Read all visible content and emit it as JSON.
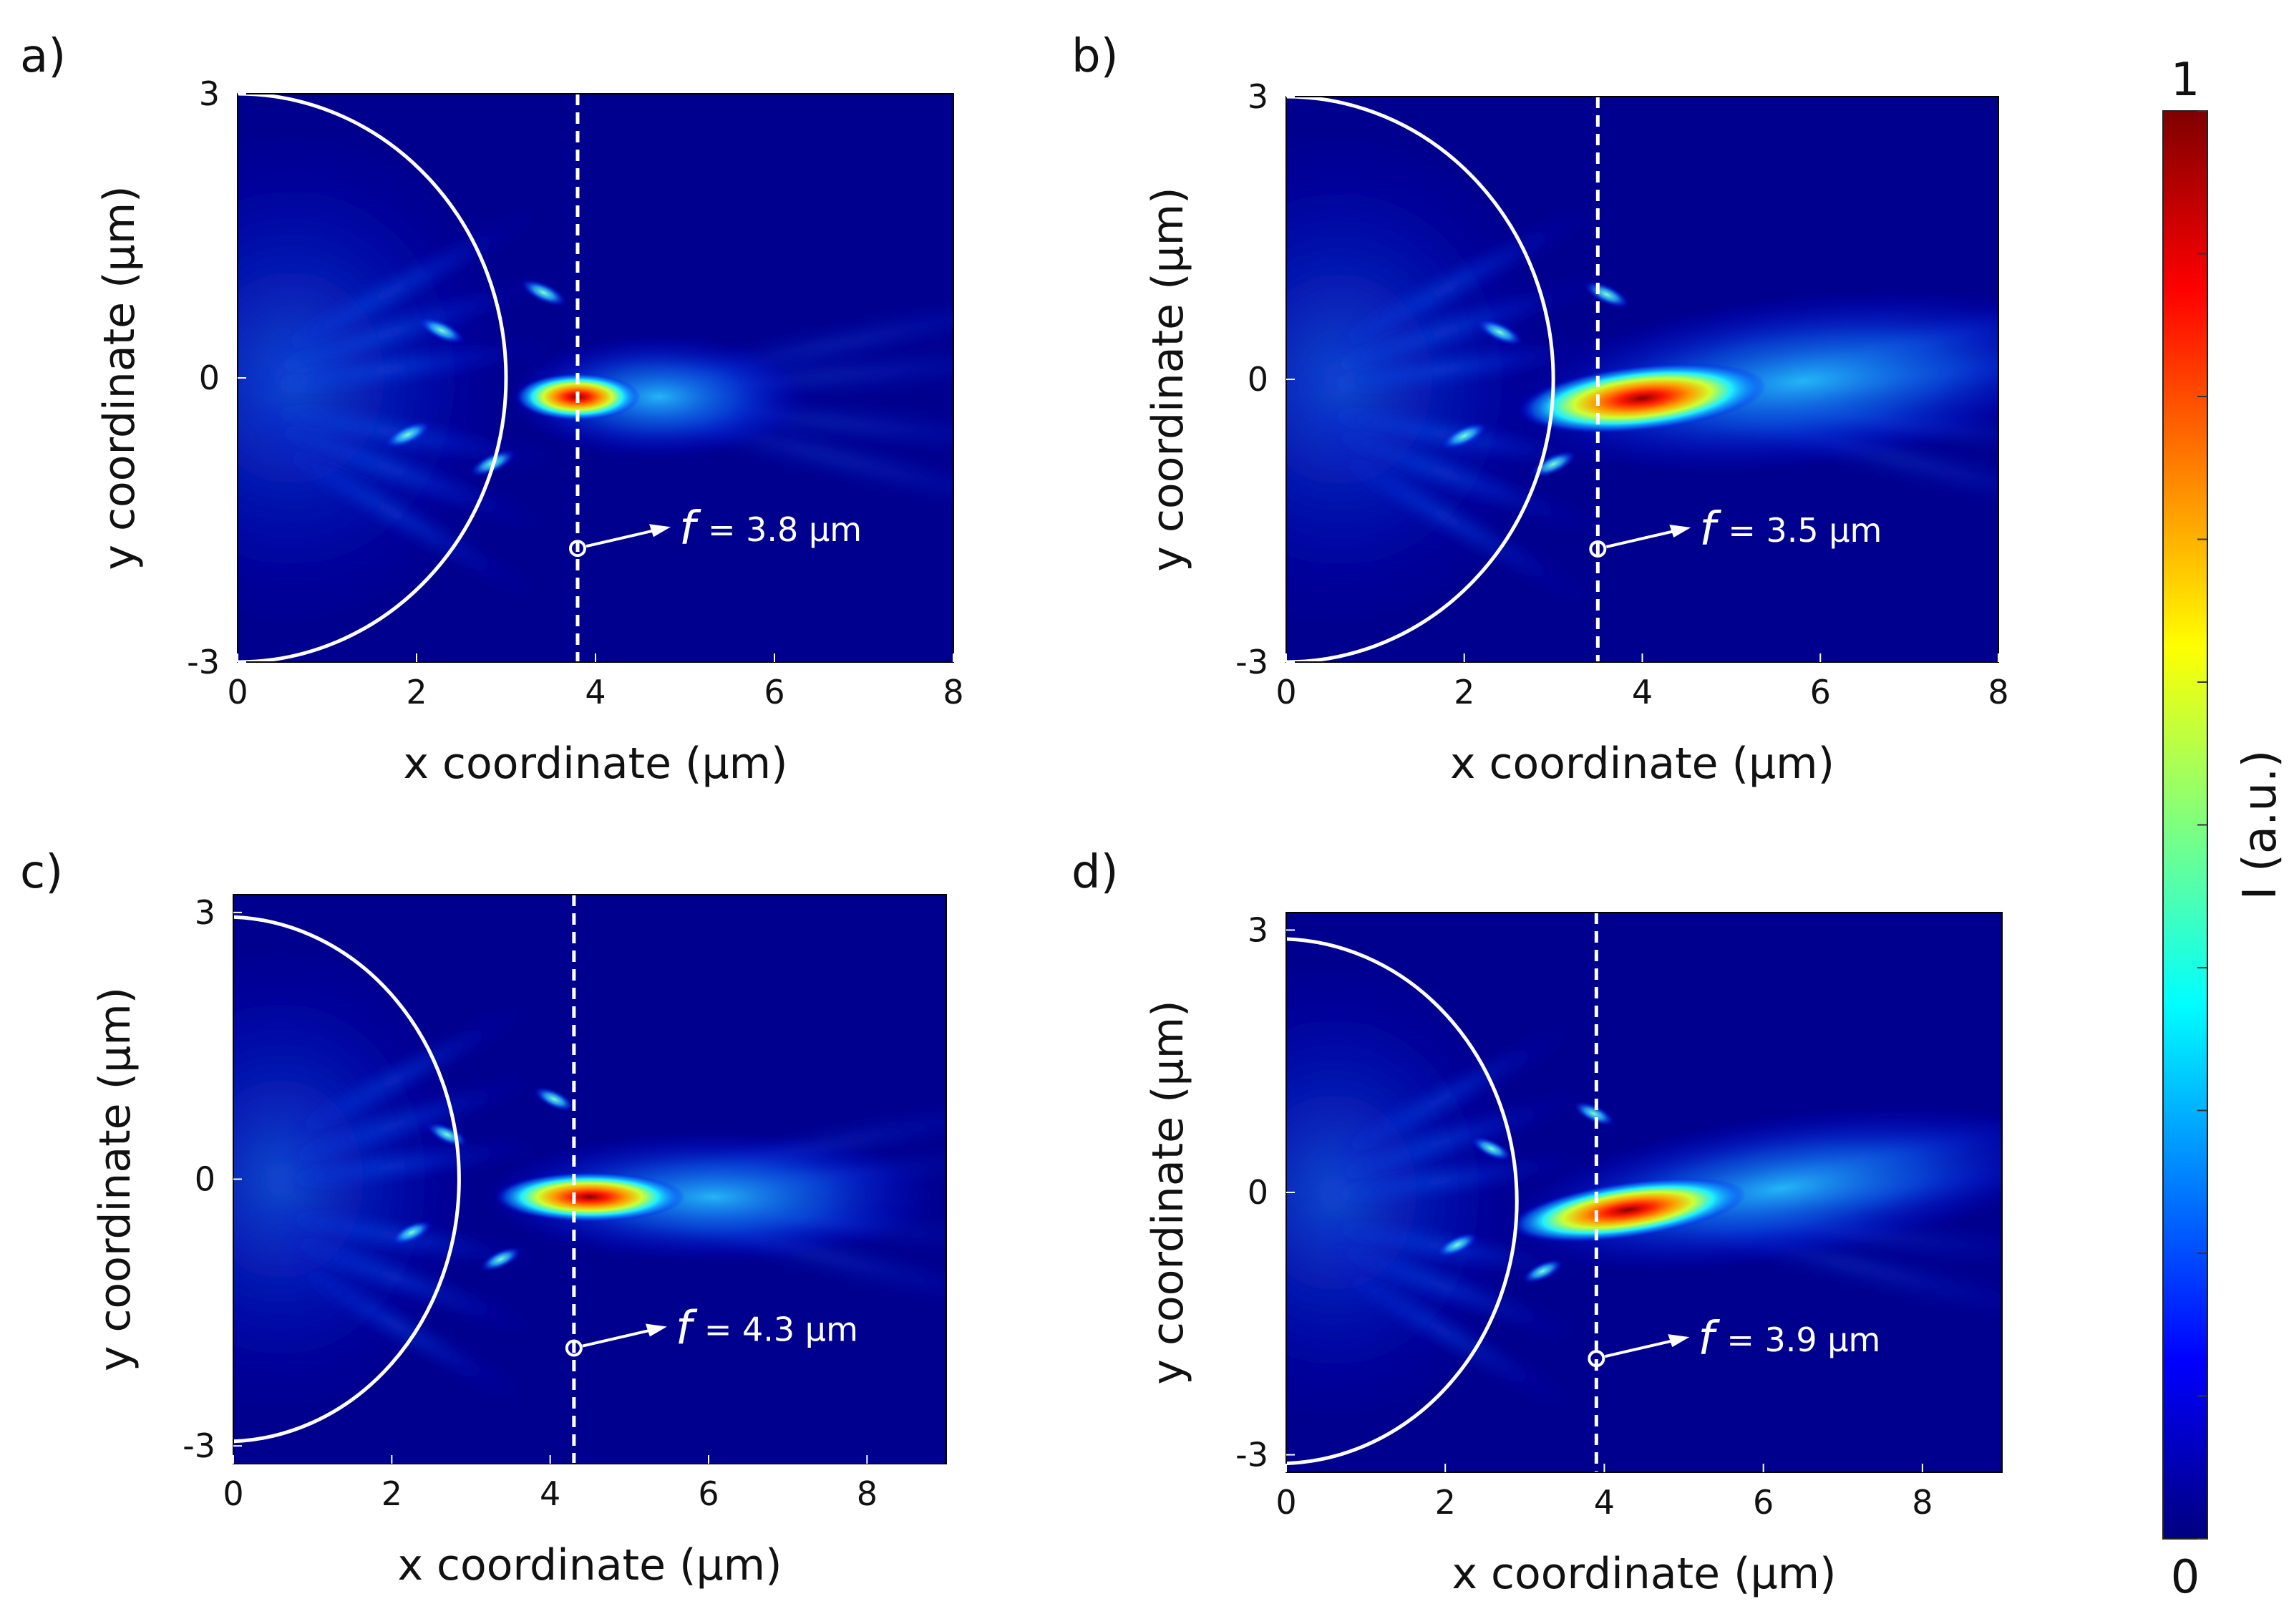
{
  "chart_data": [
    {
      "type": "heatmap",
      "panel_label": "a)",
      "xlabel": "x coordinate (µm)",
      "ylabel": "y coordinate (µm)",
      "xlim": [
        0,
        8
      ],
      "ylim": [
        -3,
        3
      ],
      "x_ticks": [
        0,
        2,
        4,
        6,
        8
      ],
      "y_ticks": [
        -3,
        0,
        3
      ],
      "lens": {
        "center_x": 0,
        "center_y": 0,
        "radius": 3.0
      },
      "focus": {
        "x": 3.8,
        "y": -0.2,
        "length": 0.7,
        "width": 0.25,
        "tilt": 0
      },
      "marker": {
        "x": 3.8,
        "y": -1.8
      },
      "annotation": {
        "symbol": "f",
        "text": "= 3.8 µm"
      }
    },
    {
      "type": "heatmap",
      "panel_label": "b)",
      "xlabel": "x coordinate (µm)",
      "ylabel": "y coordinate (µm)",
      "xlim": [
        0,
        8
      ],
      "ylim": [
        -3,
        3
      ],
      "x_ticks": [
        0,
        2,
        4,
        6,
        8
      ],
      "y_ticks": [
        -3,
        0,
        3
      ],
      "lens": {
        "center_x": 0,
        "center_y": 0,
        "radius": 3.0
      },
      "focus": {
        "x": 4.0,
        "y": -0.2,
        "length": 1.4,
        "width": 0.35,
        "tilt": -0.15
      },
      "marker": {
        "x": 3.5,
        "y": -1.8
      },
      "annotation": {
        "symbol": "f",
        "text": "= 3.5 µm"
      }
    },
    {
      "type": "heatmap",
      "panel_label": "c)",
      "xlabel": "x coordinate (µm)",
      "ylabel": "y coordinate (µm)",
      "xlim": [
        0,
        9
      ],
      "ylim": [
        -3.2,
        3.2
      ],
      "x_ticks": [
        0,
        2,
        4,
        6,
        8
      ],
      "y_ticks": [
        -3,
        0,
        3
      ],
      "lens": {
        "center_x": -0.1,
        "center_y": 0,
        "radius": 2.95
      },
      "focus": {
        "x": 4.5,
        "y": -0.2,
        "length": 1.2,
        "width": 0.28,
        "tilt": 0
      },
      "marker": {
        "x": 4.3,
        "y": -1.9
      },
      "annotation": {
        "symbol": "f",
        "text": "= 4.3 µm"
      }
    },
    {
      "type": "heatmap",
      "panel_label": "d)",
      "xlabel": "x coordinate (µm)",
      "ylabel": "y coordinate (µm)",
      "xlim": [
        0,
        9
      ],
      "ylim": [
        -3.2,
        3.2
      ],
      "x_ticks": [
        0,
        2,
        4,
        6,
        8
      ],
      "y_ticks": [
        -3,
        0,
        3
      ],
      "lens": {
        "center_x": -0.1,
        "center_y": -0.1,
        "radius": 3.0
      },
      "focus": {
        "x": 4.3,
        "y": -0.2,
        "length": 1.5,
        "width": 0.32,
        "tilt": -0.2
      },
      "marker": {
        "x": 3.9,
        "y": -1.9
      },
      "annotation": {
        "symbol": "f",
        "text": "= 3.9 µm"
      }
    }
  ],
  "colorbar": {
    "label": "I (a.u.)",
    "min_label": "0",
    "max_label": "1",
    "min": 0,
    "max": 1,
    "colors": [
      "#00007f",
      "#0000ff",
      "#007fff",
      "#00ffff",
      "#7fff7f",
      "#ffff00",
      "#ff7f00",
      "#ff0000",
      "#7f0000"
    ],
    "ticks": [
      0,
      0.1,
      0.2,
      0.3,
      0.4,
      0.5,
      0.6,
      0.7,
      0.8,
      0.9,
      1
    ]
  }
}
